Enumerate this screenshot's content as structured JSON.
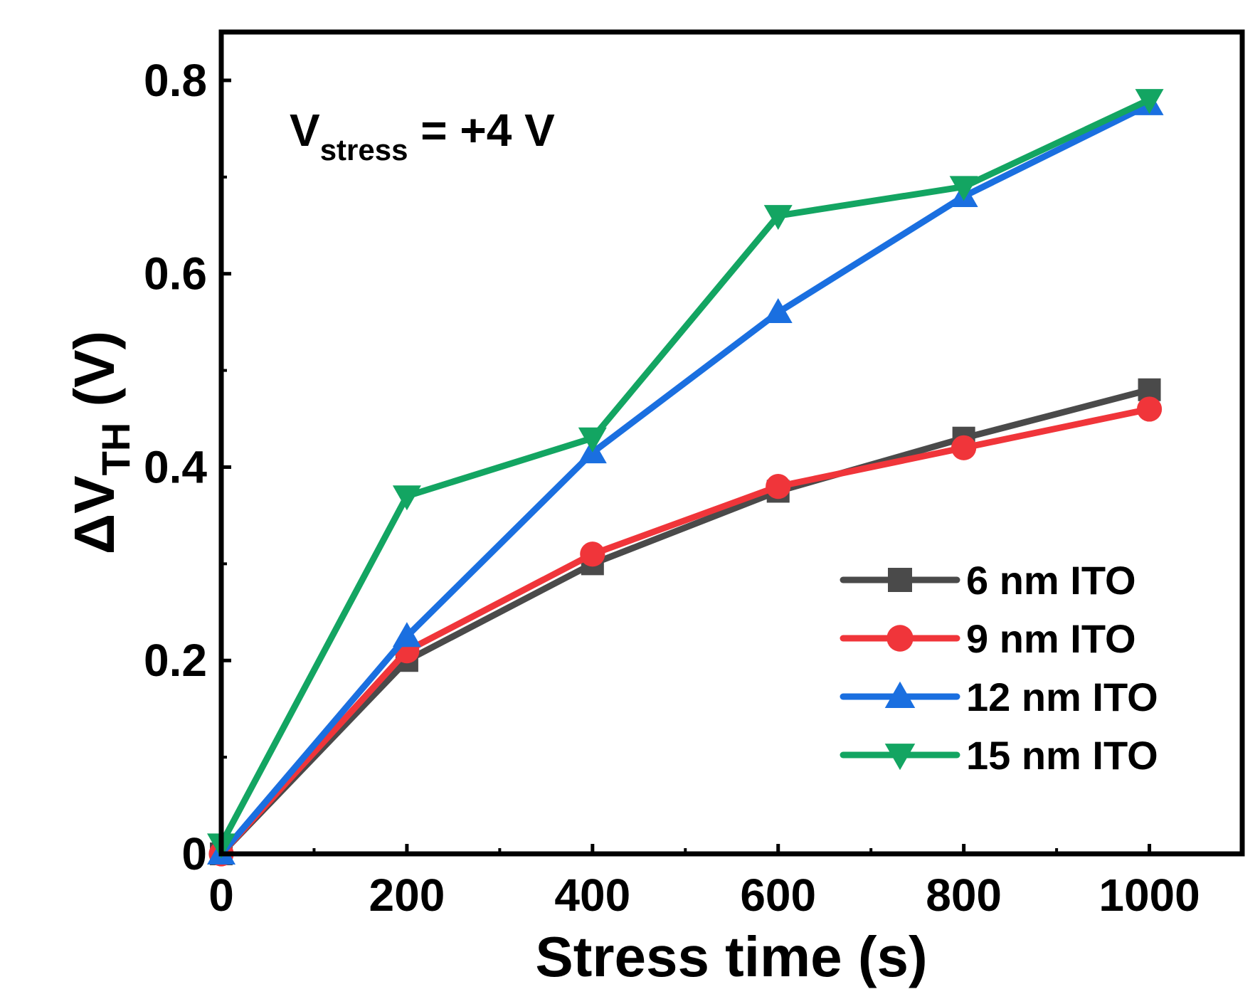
{
  "chart_data": {
    "type": "line",
    "title": "",
    "annotation": {
      "main": "V",
      "subscript": "stress",
      "tail": " = +4 V"
    },
    "xlabel": "Stress time (s)",
    "ylabel": {
      "prefix": "ΔV",
      "subscript": "TH",
      "suffix": " (V)"
    },
    "xlim": [
      0,
      1100
    ],
    "ylim": [
      0,
      0.85
    ],
    "xticks": [
      0,
      200,
      400,
      600,
      800,
      1000
    ],
    "xtick_labels": [
      "0",
      "200",
      "400",
      "600",
      "800",
      "1000"
    ],
    "yticks": [
      0,
      0.2,
      0.4,
      0.6,
      0.8
    ],
    "ytick_labels": [
      "0",
      "0.2",
      "0.4",
      "0.6",
      "0.8"
    ],
    "legend_position": "bottom-right",
    "x": [
      0,
      200,
      400,
      600,
      800,
      1000
    ],
    "series": [
      {
        "name": "6 nm ITO",
        "color": "#4a4a4a",
        "marker": "square",
        "values": [
          0.0,
          0.2,
          0.3,
          0.375,
          0.43,
          0.48
        ]
      },
      {
        "name": "9 nm ITO",
        "color": "#f0353a",
        "marker": "circle",
        "values": [
          0.0,
          0.21,
          0.31,
          0.38,
          0.42,
          0.46
        ]
      },
      {
        "name": "12 nm ITO",
        "color": "#1a6fe0",
        "marker": "triangle-up",
        "values": [
          0.0,
          0.225,
          0.415,
          0.56,
          0.68,
          0.775
        ]
      },
      {
        "name": "15 nm ITO",
        "color": "#13a562",
        "marker": "triangle-down",
        "values": [
          0.01,
          0.37,
          0.43,
          0.66,
          0.69,
          0.78
        ]
      }
    ]
  }
}
